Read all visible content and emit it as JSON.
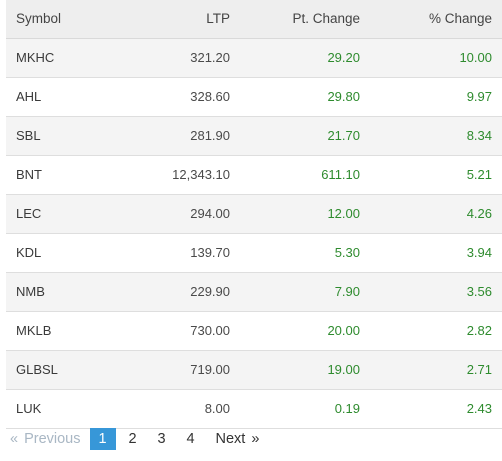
{
  "table": {
    "headers": {
      "symbol": "Symbol",
      "ltp": "LTP",
      "pt_change": "Pt. Change",
      "pct_change": "% Change"
    },
    "rows": [
      {
        "symbol": "MKHC",
        "ltp": "321.20",
        "pt_change": "29.20",
        "pct_change": "10.00"
      },
      {
        "symbol": "AHL",
        "ltp": "328.60",
        "pt_change": "29.80",
        "pct_change": "9.97"
      },
      {
        "symbol": "SBL",
        "ltp": "281.90",
        "pt_change": "21.70",
        "pct_change": "8.34"
      },
      {
        "symbol": "BNT",
        "ltp": "12,343.10",
        "pt_change": "611.10",
        "pct_change": "5.21"
      },
      {
        "symbol": "LEC",
        "ltp": "294.00",
        "pt_change": "12.00",
        "pct_change": "4.26"
      },
      {
        "symbol": "KDL",
        "ltp": "139.70",
        "pt_change": "5.30",
        "pct_change": "3.94"
      },
      {
        "symbol": "NMB",
        "ltp": "229.90",
        "pt_change": "7.90",
        "pct_change": "3.56"
      },
      {
        "symbol": "MKLB",
        "ltp": "730.00",
        "pt_change": "20.00",
        "pct_change": "2.82"
      },
      {
        "symbol": "GLBSL",
        "ltp": "719.00",
        "pt_change": "19.00",
        "pct_change": "2.71"
      },
      {
        "symbol": "LUK",
        "ltp": "8.00",
        "pt_change": "0.19",
        "pct_change": "2.43"
      }
    ]
  },
  "pagination": {
    "prev_arrow": "«",
    "prev_label": "Previous",
    "pages": [
      "1",
      "2",
      "3",
      "4"
    ],
    "current_page": "1",
    "next_label": "Next",
    "next_arrow": "»"
  },
  "colors": {
    "positive": "#2e8b2e",
    "active_page": "#3797d8",
    "disabled": "#a9b7c4"
  }
}
